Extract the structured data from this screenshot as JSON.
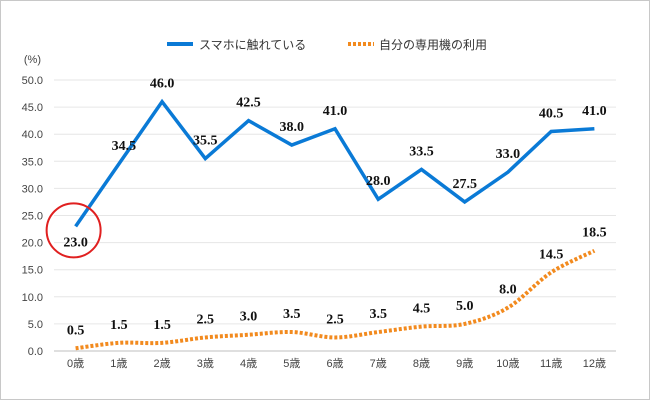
{
  "chart_data": {
    "type": "line",
    "ylabel": "(%)",
    "ylim": [
      0,
      50
    ],
    "yticks": [
      "0.0",
      "5.0",
      "10.0",
      "15.0",
      "20.0",
      "25.0",
      "30.0",
      "35.0",
      "40.0",
      "45.0",
      "50.0"
    ],
    "categories": [
      "0歳",
      "1歳",
      "2歳",
      "3歳",
      "4歳",
      "5歳",
      "6歳",
      "7歳",
      "8歳",
      "9歳",
      "10歳",
      "11歳",
      "12歳"
    ],
    "grid": true,
    "legend_position": "top",
    "series": [
      {
        "name": "スマホに触れている",
        "color": "#0a7ad6",
        "style": "solid",
        "values": [
          23.0,
          34.5,
          46.0,
          35.5,
          42.5,
          38.0,
          41.0,
          28.0,
          33.5,
          27.5,
          33.0,
          40.5,
          41.0
        ]
      },
      {
        "name": "自分の専用機の利用",
        "color": "#f28a1e",
        "style": "dotted",
        "values": [
          0.5,
          1.5,
          1.5,
          2.5,
          3.0,
          3.5,
          2.5,
          3.5,
          4.5,
          5.0,
          8.0,
          14.5,
          18.5
        ]
      }
    ],
    "annotation": {
      "type": "circle",
      "series": 0,
      "category": "0歳",
      "color": "#e02020"
    }
  }
}
